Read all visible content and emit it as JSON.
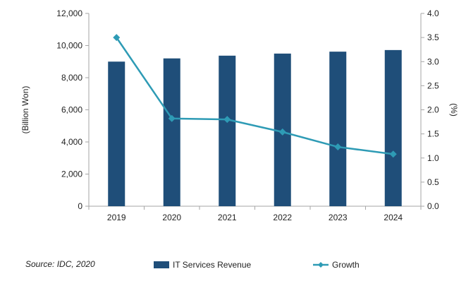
{
  "chart_data": {
    "type": "bar+line",
    "categories": [
      "2019",
      "2020",
      "2021",
      "2022",
      "2023",
      "2024"
    ],
    "series": [
      {
        "name": "IT Services Revenue",
        "type": "bar",
        "axis": "left",
        "values": [
          9000,
          9200,
          9370,
          9500,
          9620,
          9720
        ]
      },
      {
        "name": "Growth",
        "type": "line",
        "axis": "right",
        "values": [
          3.5,
          1.82,
          1.8,
          1.54,
          1.23,
          1.08
        ]
      }
    ],
    "y_left": {
      "label": "(Billion Won)",
      "min": 0,
      "max": 12000,
      "step": 2000,
      "ticks": [
        "0",
        "2,000",
        "4,000",
        "6,000",
        "8,000",
        "10,000",
        "12,000"
      ]
    },
    "y_right": {
      "label": "(%)",
      "min": 0,
      "max": 4.0,
      "step": 0.5,
      "ticks": [
        "0.0",
        "0.5",
        "1.0",
        "1.5",
        "2.0",
        "2.5",
        "3.0",
        "3.5",
        "4.0"
      ]
    },
    "legend": [
      "IT Services Revenue",
      "Growth"
    ],
    "legend_position": "bottom",
    "grid": false,
    "colors": {
      "bar": "#1f4e79",
      "line": "#2e9bb5"
    }
  },
  "source": "Source: IDC, 2020"
}
